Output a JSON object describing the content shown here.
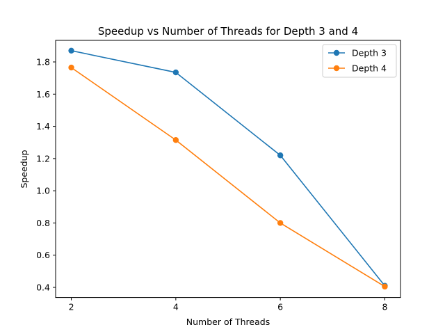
{
  "chart_data": {
    "type": "line",
    "title": "Speedup vs Number of Threads for Depth 3 and 4",
    "xlabel": "Number of Threads",
    "ylabel": "Speedup",
    "x": [
      2,
      4,
      6,
      8
    ],
    "xticks": [
      "2",
      "4",
      "6",
      "8"
    ],
    "yticks": [
      "0.4",
      "0.6",
      "0.8",
      "1.0",
      "1.2",
      "1.4",
      "1.6",
      "1.8"
    ],
    "xlim": [
      1.7,
      8.3
    ],
    "ylim": [
      0.337,
      1.934
    ],
    "grid": false,
    "legend_position": "top-right",
    "series": [
      {
        "name": "Depth 3",
        "color": "#1f77b4",
        "values": [
          1.87,
          1.735,
          1.22,
          0.41
        ]
      },
      {
        "name": "Depth 4",
        "color": "#ff7f0e",
        "values": [
          1.765,
          1.315,
          0.8,
          0.405
        ]
      }
    ]
  }
}
